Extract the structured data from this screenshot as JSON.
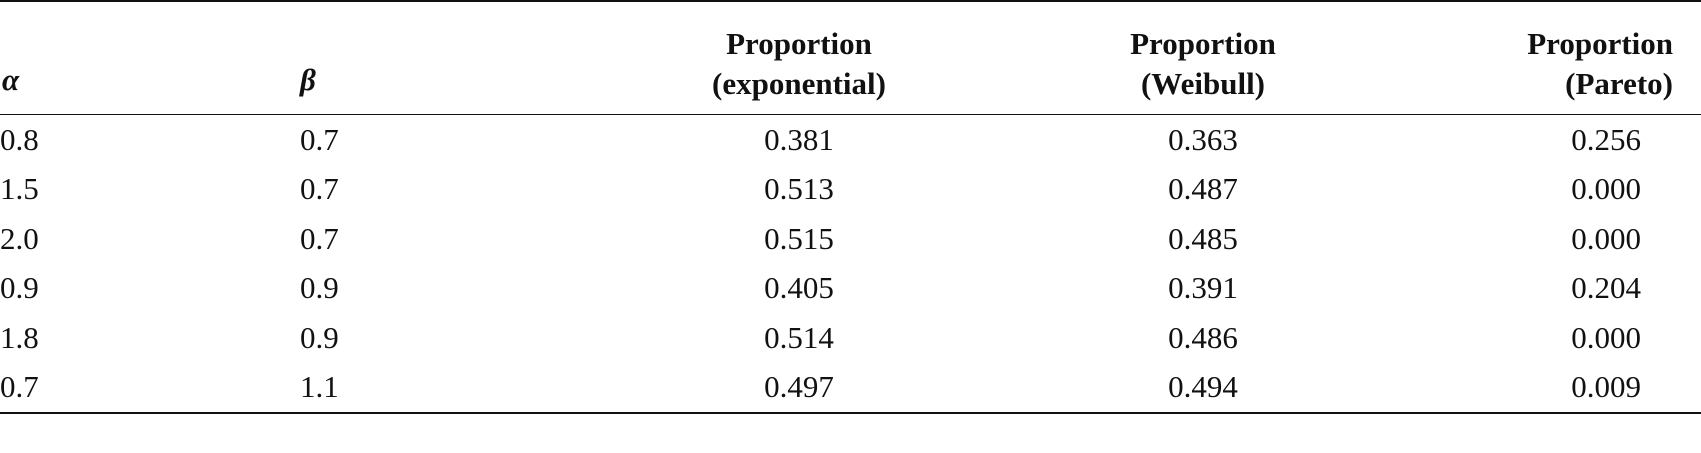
{
  "table": {
    "headers": [
      {
        "lines": [
          "α"
        ]
      },
      {
        "lines": [
          "β"
        ]
      },
      {
        "lines": [
          "Proportion",
          "(exponential)"
        ]
      },
      {
        "lines": [
          "Proportion",
          "(Weibull)"
        ]
      },
      {
        "lines": [
          "Proportion",
          "(Pareto)"
        ]
      }
    ],
    "rows": [
      [
        "0.8",
        "0.7",
        "0.381",
        "0.363",
        "0.256"
      ],
      [
        "1.5",
        "0.7",
        "0.513",
        "0.487",
        "0.000"
      ],
      [
        "2.0",
        "0.7",
        "0.515",
        "0.485",
        "0.000"
      ],
      [
        "0.9",
        "0.9",
        "0.405",
        "0.391",
        "0.204"
      ],
      [
        "1.8",
        "0.9",
        "0.514",
        "0.486",
        "0.000"
      ],
      [
        "0.7",
        "1.1",
        "0.497",
        "0.494",
        "0.009"
      ]
    ]
  }
}
